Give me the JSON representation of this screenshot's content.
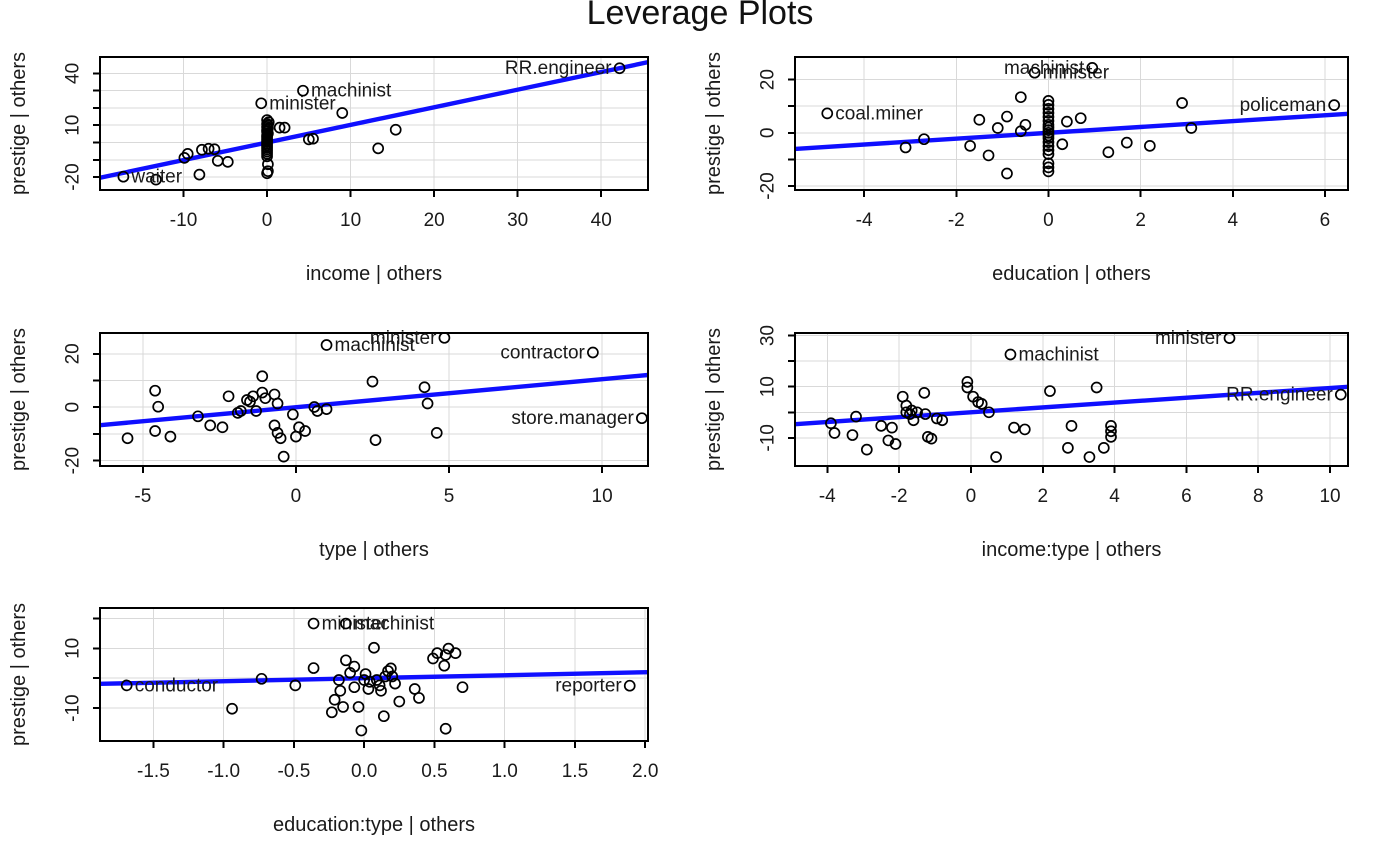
{
  "title": "Leverage Plots",
  "colors": {
    "line": "#0f0fff",
    "point_stroke": "#000000",
    "grid": "#d9d9d9",
    "box": "#000000",
    "text": "#1a1a1a"
  },
  "chart_data": [
    {
      "id": "income",
      "type": "scatter",
      "xlabel": "income | others",
      "ylabel": "prestige | others",
      "xlim": [
        -20,
        45.6
      ],
      "ylim": [
        -27.5,
        49.5
      ],
      "xticks": {
        "values": [
          -10,
          0,
          10,
          20,
          30,
          40
        ],
        "labels": [
          "-10",
          "0",
          "10",
          "20",
          "30",
          "40"
        ]
      },
      "yticks": {
        "values": [
          -20,
          -10,
          0,
          10,
          20,
          30,
          40
        ],
        "labels": [
          "-20",
          "",
          "",
          "10",
          "",
          "",
          "40"
        ]
      },
      "line": {
        "slope": 1.02,
        "intercept": 0
      },
      "points": [
        [
          -13.3,
          -21.5
        ],
        [
          -9.9,
          -8.9
        ],
        [
          -9.5,
          -6.6
        ],
        [
          -8.1,
          -18.6
        ],
        [
          -7.8,
          -4.2
        ],
        [
          -7.0,
          -3.6
        ],
        [
          -6.3,
          -3.9
        ],
        [
          -5.9,
          -10.6
        ],
        [
          -4.7,
          -11.2
        ],
        [
          0,
          13
        ],
        [
          0.2,
          11.8
        ],
        [
          0,
          10.8
        ],
        [
          0.1,
          9.9
        ],
        [
          0,
          9
        ],
        [
          0.1,
          8.2
        ],
        [
          0,
          7.3
        ],
        [
          0,
          6.3
        ],
        [
          0.1,
          5.2
        ],
        [
          0,
          4.2
        ],
        [
          0,
          3.2
        ],
        [
          0,
          2.2
        ],
        [
          0,
          1.2
        ],
        [
          0,
          0.2
        ],
        [
          0,
          -0.8
        ],
        [
          0,
          -1.8
        ],
        [
          0,
          -2.9
        ],
        [
          0,
          -4
        ],
        [
          0,
          -5.2
        ],
        [
          0,
          -6.5
        ],
        [
          0,
          -8
        ],
        [
          0.1,
          -12.6
        ],
        [
          0.1,
          -16.6
        ],
        [
          0,
          -17.8
        ],
        [
          1.5,
          8.6
        ],
        [
          2.1,
          8.6
        ],
        [
          5.0,
          1.8
        ],
        [
          5.5,
          2.2
        ],
        [
          9.0,
          17.1
        ],
        [
          13.3,
          -3.4
        ],
        [
          15.4,
          7.4
        ]
      ],
      "labeled_points": [
        {
          "label": "waiter",
          "x": -17.2,
          "y": -19.8,
          "side": "right"
        },
        {
          "label": "minister",
          "x": -0.7,
          "y": 22.7,
          "side": "right"
        },
        {
          "label": "machinist",
          "x": 4.3,
          "y": 30.0,
          "side": "right"
        },
        {
          "label": "RR.engineer",
          "x": 42.2,
          "y": 43.0,
          "side": "left"
        }
      ]
    },
    {
      "id": "education",
      "type": "scatter",
      "xlabel": "education | others",
      "ylabel": "prestige | others",
      "xlim": [
        -5.5,
        6.5
      ],
      "ylim": [
        -21.5,
        28.5
      ],
      "xticks": {
        "values": [
          -4,
          -2,
          0,
          2,
          4,
          6
        ],
        "labels": [
          "-4",
          "-2",
          "0",
          "2",
          "4",
          "6"
        ]
      },
      "yticks": {
        "values": [
          -20,
          -10,
          0,
          10,
          20
        ],
        "labels": [
          "-20",
          "",
          "0",
          "",
          "20"
        ]
      },
      "line": {
        "slope": 1.1,
        "intercept": 0
      },
      "points": [
        [
          -3.1,
          -5.5
        ],
        [
          -2.7,
          -2.4
        ],
        [
          -1.7,
          -4.9
        ],
        [
          -1.5,
          4.9
        ],
        [
          -1.3,
          -8.5
        ],
        [
          -1.1,
          1.8
        ],
        [
          -0.9,
          6.1
        ],
        [
          -0.9,
          -15.3
        ],
        [
          -0.6,
          13.4
        ],
        [
          -0.6,
          0.6
        ],
        [
          -0.5,
          3.0
        ],
        [
          0,
          12
        ],
        [
          0,
          10.5
        ],
        [
          0,
          9
        ],
        [
          0,
          7.5
        ],
        [
          0,
          6
        ],
        [
          0,
          4.5
        ],
        [
          0,
          3
        ],
        [
          0,
          2
        ],
        [
          0,
          1
        ],
        [
          0,
          0
        ],
        [
          0,
          -1
        ],
        [
          0,
          -2
        ],
        [
          0,
          -3.5
        ],
        [
          0,
          -5
        ],
        [
          0,
          -6.5
        ],
        [
          0,
          -8
        ],
        [
          0,
          -11.5
        ],
        [
          0,
          -13
        ],
        [
          0,
          -14.5
        ],
        [
          0.3,
          -4.3
        ],
        [
          0.4,
          4.2
        ],
        [
          0.7,
          5.5
        ],
        [
          1.3,
          -7.3
        ],
        [
          1.7,
          -3.7
        ],
        [
          2.2,
          -4.9
        ],
        [
          2.9,
          11.2
        ],
        [
          3.1,
          1.8
        ]
      ],
      "labeled_points": [
        {
          "label": "coal.miner",
          "x": -4.8,
          "y": 7.3,
          "side": "right"
        },
        {
          "label": "minister",
          "x": -0.3,
          "y": 22.6,
          "side": "right"
        },
        {
          "label": "machinist",
          "x": 0.95,
          "y": 24.4,
          "side": "left"
        },
        {
          "label": "policeman",
          "x": 6.2,
          "y": 10.4,
          "side": "left"
        }
      ]
    },
    {
      "id": "type",
      "type": "scatter",
      "xlabel": "type | others",
      "ylabel": "prestige | others",
      "xlim": [
        -6.4,
        11.5
      ],
      "ylim": [
        -22,
        27.8
      ],
      "xticks": {
        "values": [
          -5,
          0,
          5,
          10
        ],
        "labels": [
          "-5",
          "0",
          "5",
          "10"
        ]
      },
      "yticks": {
        "values": [
          -20,
          -10,
          0,
          10,
          20
        ],
        "labels": [
          "-20",
          "",
          "0",
          "",
          "20"
        ]
      },
      "line": {
        "slope": 1.05,
        "intercept": 0
      },
      "points": [
        [
          -5.5,
          -11.6
        ],
        [
          -4.6,
          6.2
        ],
        [
          -4.5,
          0.2
        ],
        [
          -4.6,
          -8.9
        ],
        [
          -4.1,
          -11
        ],
        [
          -3.2,
          -3.4
        ],
        [
          -2.8,
          -6.8
        ],
        [
          -2.4,
          -7.5
        ],
        [
          -2.2,
          4.1
        ],
        [
          -1.9,
          -2.1
        ],
        [
          -1.8,
          -1.4
        ],
        [
          -1.6,
          2.7
        ],
        [
          -1.5,
          2.1
        ],
        [
          -1.4,
          4.1
        ],
        [
          -1.3,
          -1.4
        ],
        [
          -1.1,
          11.6
        ],
        [
          -1.1,
          5.5
        ],
        [
          -1.0,
          3.4
        ],
        [
          -0.7,
          4.8
        ],
        [
          -0.7,
          -6.8
        ],
        [
          -0.6,
          1.4
        ],
        [
          -0.6,
          -9.6
        ],
        [
          -0.5,
          -11.6
        ],
        [
          -0.4,
          -18.5
        ],
        [
          -0.1,
          -2.7
        ],
        [
          0,
          -11
        ],
        [
          0.1,
          -7.5
        ],
        [
          0.3,
          -8.9
        ],
        [
          0.6,
          0.1
        ],
        [
          0.7,
          -1.4
        ],
        [
          1.0,
          -0.7
        ],
        [
          2.5,
          9.6
        ],
        [
          2.6,
          -12.3
        ],
        [
          4.2,
          7.5
        ],
        [
          4.3,
          1.4
        ],
        [
          4.6,
          -9.6
        ]
      ],
      "labeled_points": [
        {
          "label": "machinist",
          "x": 1.0,
          "y": 23.3,
          "side": "right"
        },
        {
          "label": "minister",
          "x": 4.85,
          "y": 26.0,
          "side": "left"
        },
        {
          "label": "contractor",
          "x": 9.7,
          "y": 20.5,
          "side": "left"
        },
        {
          "label": "store.manager",
          "x": 11.3,
          "y": -4.1,
          "side": "left"
        }
      ]
    },
    {
      "id": "income-type",
      "type": "scatter",
      "xlabel": "income:type | others",
      "ylabel": "prestige | others",
      "xlim": [
        -4.9,
        10.5
      ],
      "ylim": [
        -21,
        31
      ],
      "xticks": {
        "values": [
          -4,
          -2,
          0,
          2,
          4,
          6,
          8,
          10
        ],
        "labels": [
          "-4",
          "-2",
          "0",
          "2",
          "4",
          "6",
          "8",
          "10"
        ]
      },
      "yticks": {
        "values": [
          -10,
          0,
          10,
          20,
          30
        ],
        "labels": [
          "-10",
          "",
          "10",
          "",
          "30"
        ]
      },
      "line": {
        "slope": 0.95,
        "intercept": 0
      },
      "points": [
        [
          -3.9,
          -4.3
        ],
        [
          -3.8,
          -8.1
        ],
        [
          -3.2,
          -1.7
        ],
        [
          -3.3,
          -8.9
        ],
        [
          -2.9,
          -14.6
        ],
        [
          -2.5,
          -5.3
        ],
        [
          -2.2,
          -6
        ],
        [
          -2.3,
          -11
        ],
        [
          -2.1,
          -12.4
        ],
        [
          -1.9,
          6.1
        ],
        [
          -1.8,
          2.6
        ],
        [
          -1.8,
          0
        ],
        [
          -1.7,
          -0.7
        ],
        [
          -1.65,
          0.7
        ],
        [
          -1.6,
          -3.1
        ],
        [
          -1.5,
          0
        ],
        [
          -1.3,
          7.6
        ],
        [
          -1.27,
          -0.7
        ],
        [
          -1.2,
          -9.6
        ],
        [
          -1.1,
          -10.3
        ],
        [
          -0.95,
          -2.4
        ],
        [
          -0.8,
          -3.1
        ],
        [
          -0.1,
          11.9
        ],
        [
          -0.1,
          9.7
        ],
        [
          0.06,
          6.1
        ],
        [
          0.2,
          4
        ],
        [
          0.3,
          3.3
        ],
        [
          0.5,
          0
        ],
        [
          0.7,
          -17.5
        ],
        [
          1.2,
          -6
        ],
        [
          1.5,
          -6.7
        ],
        [
          2.2,
          8.3
        ],
        [
          2.7,
          -13.9
        ],
        [
          2.8,
          -5.3
        ],
        [
          3.3,
          -17.5
        ],
        [
          3.5,
          9.7
        ],
        [
          3.7,
          -13.9
        ],
        [
          3.9,
          -5.3
        ],
        [
          3.9,
          -7.4
        ],
        [
          3.9,
          -9.6
        ]
      ],
      "labeled_points": [
        {
          "label": "machinist",
          "x": 1.1,
          "y": 22.6,
          "side": "right"
        },
        {
          "label": "minister",
          "x": 7.2,
          "y": 29.0,
          "side": "left"
        },
        {
          "label": "RR.engineer",
          "x": 10.3,
          "y": 6.9,
          "side": "left"
        }
      ]
    },
    {
      "id": "education-type",
      "type": "scatter",
      "xlabel": "education:type | others",
      "ylabel": "prestige | others",
      "xlim": [
        -1.88,
        2.02
      ],
      "ylim": [
        -21,
        23.5
      ],
      "xticks": {
        "values": [
          -1.5,
          -1.0,
          -0.5,
          0.0,
          0.5,
          1.0,
          1.5,
          2.0
        ],
        "labels": [
          "-1.5",
          "-1.0",
          "-0.5",
          "0.0",
          "0.5",
          "1.0",
          "1.5",
          "2.0"
        ]
      },
      "yticks": {
        "values": [
          -10,
          0,
          10,
          20
        ],
        "labels": [
          "-10",
          "",
          "10",
          ""
        ]
      },
      "line": {
        "slope": 1.0,
        "intercept": 0
      },
      "points": [
        [
          -0.94,
          -10.2
        ],
        [
          -0.73,
          -0.2
        ],
        [
          -0.49,
          -2.4
        ],
        [
          -0.36,
          3.4
        ],
        [
          -0.23,
          -11.4
        ],
        [
          -0.21,
          -7.2
        ],
        [
          -0.18,
          -0.6
        ],
        [
          -0.17,
          -4.2
        ],
        [
          -0.15,
          -9.6
        ],
        [
          -0.13,
          6.0
        ],
        [
          -0.1,
          1.8
        ],
        [
          -0.07,
          3.9
        ],
        [
          -0.07,
          -3.0
        ],
        [
          -0.04,
          -9.6
        ],
        [
          -0.02,
          -17.5
        ],
        [
          0.0,
          -0.6
        ],
        [
          0.01,
          1.4
        ],
        [
          0.03,
          -3.6
        ],
        [
          0.04,
          -1.2
        ],
        [
          0.07,
          10.2
        ],
        [
          0.09,
          -0.6
        ],
        [
          0.11,
          -2.4
        ],
        [
          0.12,
          -4.2
        ],
        [
          0.14,
          -12.7
        ],
        [
          0.15,
          0.6
        ],
        [
          0.17,
          2.4
        ],
        [
          0.19,
          3.3
        ],
        [
          0.2,
          0.6
        ],
        [
          0.22,
          -1.8
        ],
        [
          0.25,
          -7.8
        ],
        [
          0.36,
          -3.6
        ],
        [
          0.39,
          -6.6
        ],
        [
          0.49,
          6.6
        ],
        [
          0.52,
          8.4
        ],
        [
          0.57,
          4.2
        ],
        [
          0.58,
          7.8
        ],
        [
          0.58,
          -16.9
        ],
        [
          0.6,
          9.9
        ],
        [
          0.65,
          8.4
        ],
        [
          0.7,
          -3.0
        ]
      ],
      "labeled_points": [
        {
          "label": "conductor",
          "x": -1.69,
          "y": -2.4,
          "side": "right"
        },
        {
          "label": "minister",
          "x": -0.36,
          "y": 18.3,
          "side": "right"
        },
        {
          "label": "machinist",
          "x": -0.13,
          "y": 18.3,
          "side": "right"
        },
        {
          "label": "reporter",
          "x": 1.89,
          "y": -2.5,
          "side": "left"
        }
      ]
    }
  ]
}
